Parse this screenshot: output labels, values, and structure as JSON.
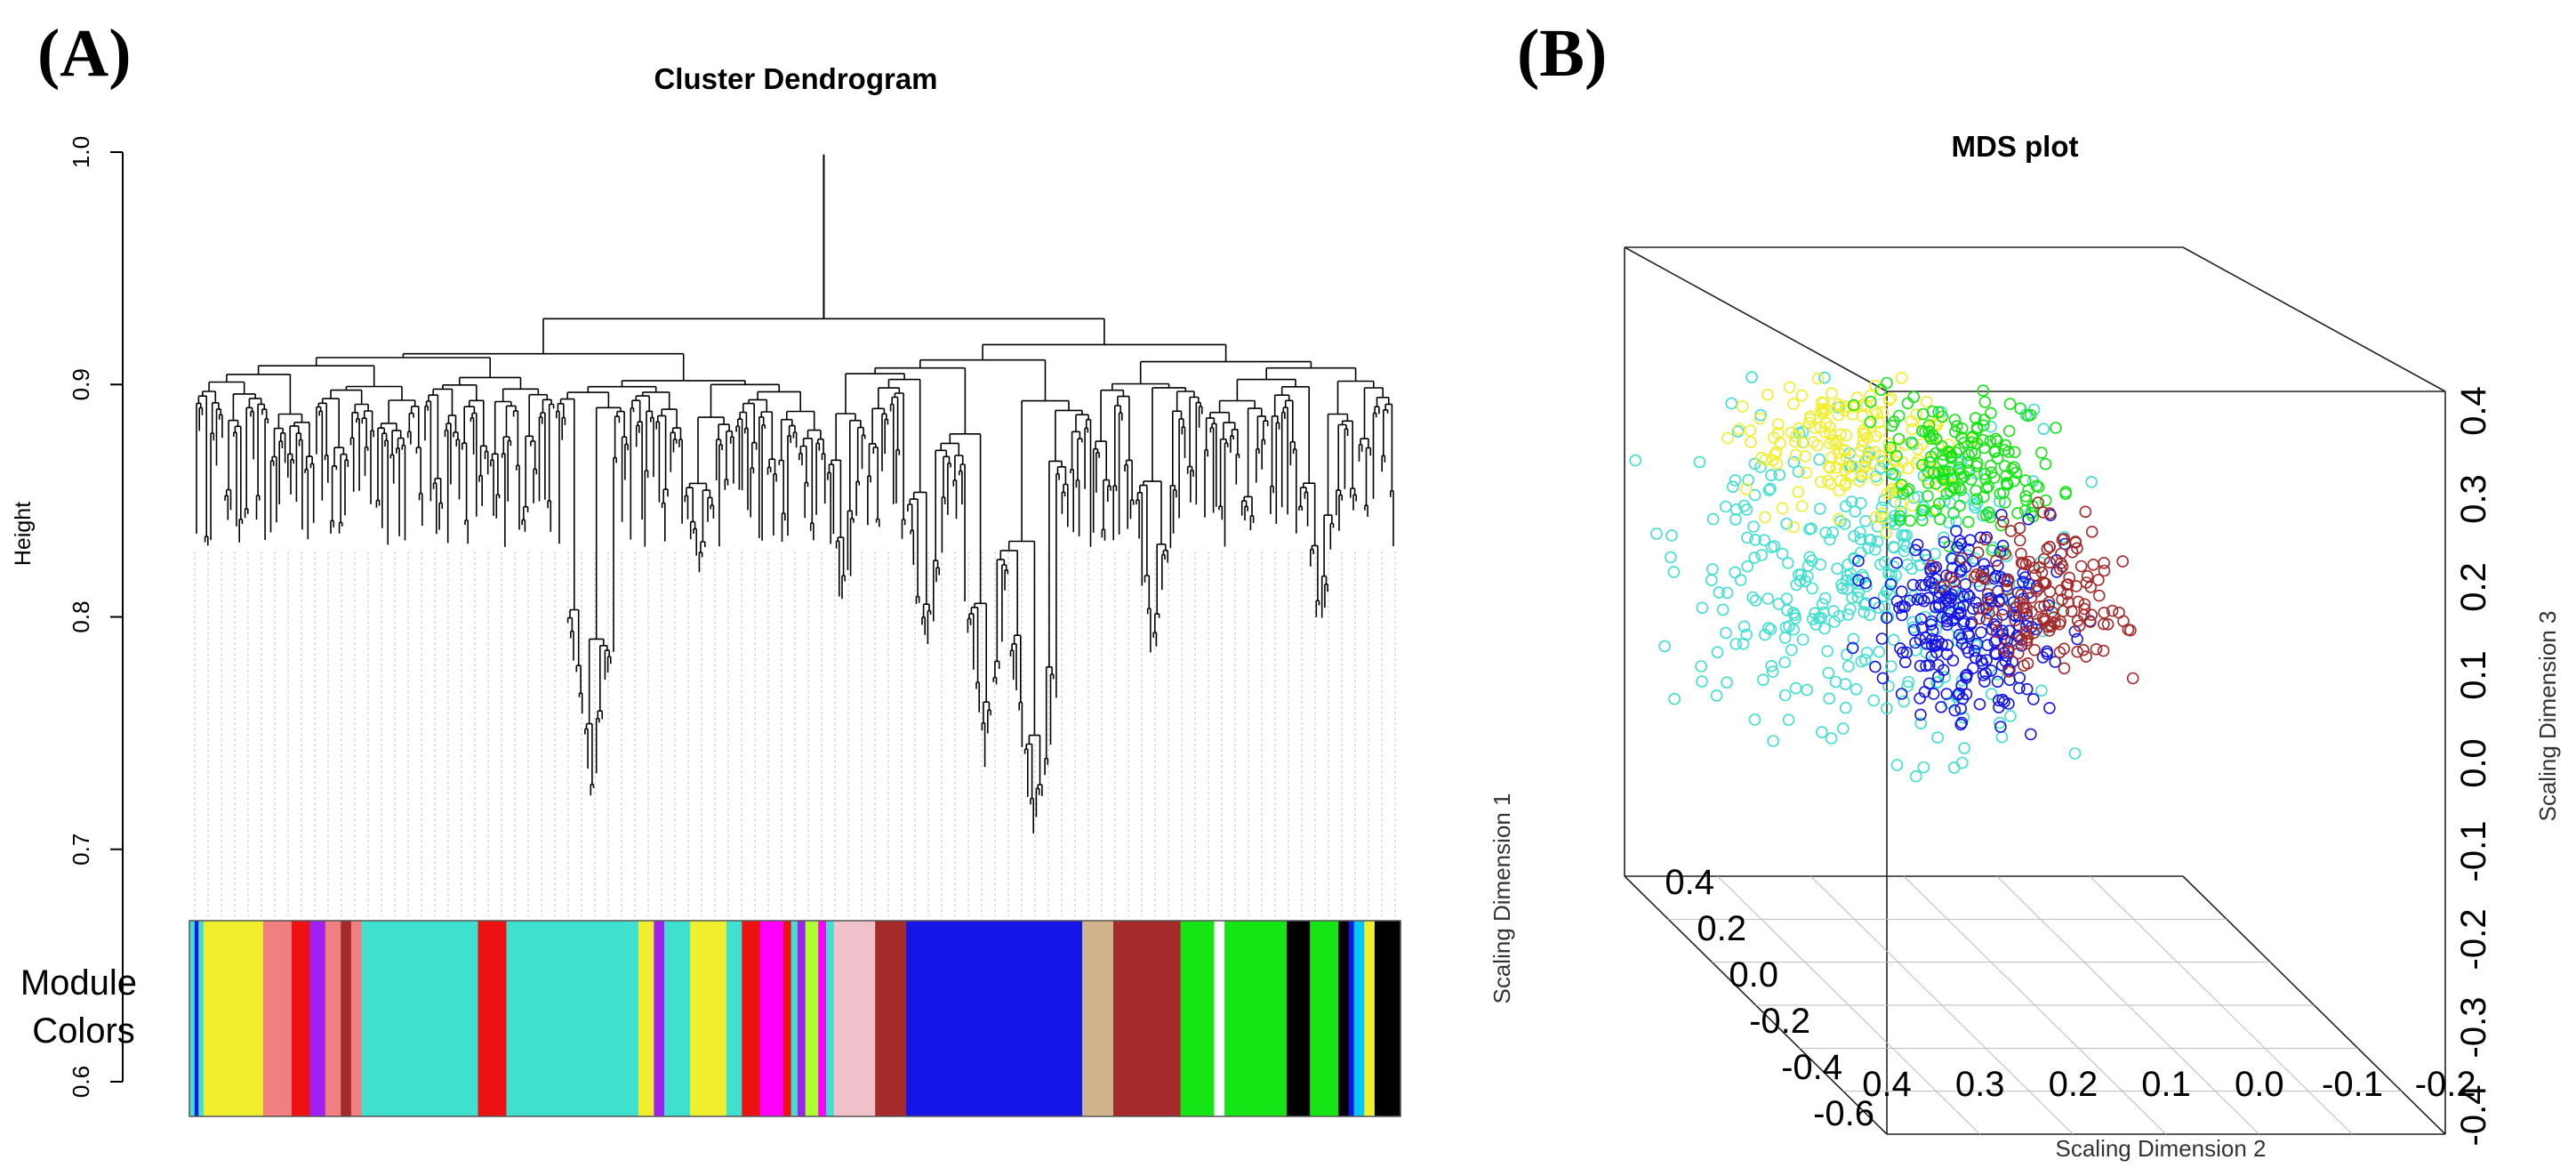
{
  "panel_a": {
    "label": "(A)"
  },
  "panel_b": {
    "label": "(B)"
  },
  "chart_data": [
    {
      "type": "dendrogram",
      "title": "Cluster Dendrogram",
      "ylabel": "Height",
      "ylim": [
        0.6,
        1.0
      ],
      "yticks": [
        "0.6",
        "0.7",
        "0.8",
        "0.9",
        "1.0"
      ],
      "module_label_lines": [
        "Module",
        "Colors"
      ],
      "branch_color": "#000000",
      "leaf_line_color": "#c9cedb",
      "module_colors": [
        {
          "color": "turquoise",
          "hex": "#40e0d0",
          "width": 0.4
        },
        {
          "color": "blue",
          "hex": "#1515e8",
          "width": 0.3
        },
        {
          "color": "turquoise",
          "hex": "#40e0d0",
          "width": 0.4
        },
        {
          "color": "yellow",
          "hex": "#f1ee2e",
          "width": 4.6
        },
        {
          "color": "salmon",
          "hex": "#f08080",
          "width": 2.2
        },
        {
          "color": "red",
          "hex": "#ee1111",
          "width": 1.4
        },
        {
          "color": "purple",
          "hex": "#a020f0",
          "width": 1.2
        },
        {
          "color": "salmon",
          "hex": "#f08080",
          "width": 1.2
        },
        {
          "color": "brown",
          "hex": "#a52a2a",
          "width": 0.8
        },
        {
          "color": "salmon",
          "hex": "#f08080",
          "width": 0.8
        },
        {
          "color": "turquoise",
          "hex": "#40e0d0",
          "width": 9.0
        },
        {
          "color": "red",
          "hex": "#ee1111",
          "width": 2.2
        },
        {
          "color": "turquoise",
          "hex": "#40e0d0",
          "width": 10.2
        },
        {
          "color": "yellow",
          "hex": "#f1ee2e",
          "width": 1.2
        },
        {
          "color": "purple",
          "hex": "#a020f0",
          "width": 0.8
        },
        {
          "color": "turquoise",
          "hex": "#40e0d0",
          "width": 2.0
        },
        {
          "color": "yellow",
          "hex": "#f1ee2e",
          "width": 2.8
        },
        {
          "color": "turquoise",
          "hex": "#40e0d0",
          "width": 1.2
        },
        {
          "color": "red",
          "hex": "#ee1111",
          "width": 1.4
        },
        {
          "color": "magenta",
          "hex": "#ff00ff",
          "width": 1.8
        },
        {
          "color": "red",
          "hex": "#ee1111",
          "width": 0.6
        },
        {
          "color": "turquoise",
          "hex": "#40e0d0",
          "width": 0.5
        },
        {
          "color": "purple",
          "hex": "#a020f0",
          "width": 0.6
        },
        {
          "color": "greenyellow",
          "hex": "#adff2f",
          "width": 1.0
        },
        {
          "color": "magenta",
          "hex": "#ff00ff",
          "width": 0.6
        },
        {
          "color": "turquoise",
          "hex": "#40e0d0",
          "width": 0.6
        },
        {
          "color": "pink",
          "hex": "#f0c0cb",
          "width": 3.2
        },
        {
          "color": "brown",
          "hex": "#a52a2a",
          "width": 2.4
        },
        {
          "color": "blue",
          "hex": "#1515e8",
          "width": 13.6
        },
        {
          "color": "tan",
          "hex": "#d2b48c",
          "width": 2.4
        },
        {
          "color": "brown",
          "hex": "#a52a2a",
          "width": 5.2
        },
        {
          "color": "green",
          "hex": "#15e515",
          "width": 2.6
        },
        {
          "color": "white",
          "hex": "#ffffff",
          "width": 0.8
        },
        {
          "color": "green",
          "hex": "#15e515",
          "width": 4.8
        },
        {
          "color": "black",
          "hex": "#000000",
          "width": 1.8
        },
        {
          "color": "green",
          "hex": "#15e515",
          "width": 2.2
        },
        {
          "color": "black",
          "hex": "#000000",
          "width": 0.8
        },
        {
          "color": "blue",
          "hex": "#1515e8",
          "width": 0.4
        },
        {
          "color": "cyan",
          "hex": "#00c8ff",
          "width": 0.8
        },
        {
          "color": "yellow",
          "hex": "#f1ee2e",
          "width": 0.8
        },
        {
          "color": "black",
          "hex": "#000000",
          "width": 2.0
        }
      ]
    },
    {
      "type": "scatter3d",
      "title": "MDS plot",
      "xlabel": "Scaling Dimension 2",
      "ylabel": "Scaling Dimension 1",
      "zlabel": "Scaling Dimension 3",
      "xlim": [
        0.4,
        -0.2
      ],
      "ylim": [
        -0.6,
        0.4
      ],
      "zlim": [
        -0.4,
        0.4
      ],
      "xticks": [
        "0.4",
        "0.3",
        "0.2",
        "0.1",
        "0.0",
        "-0.1",
        "-0.2"
      ],
      "yticks": [
        "0.4",
        "0.2",
        "0.0",
        "-0.2",
        "-0.4",
        "-0.6"
      ],
      "zticks": [
        "0.4",
        "0.3",
        "0.2",
        "0.1",
        "0.0",
        "-0.1",
        "-0.2",
        "-0.3",
        "-0.4"
      ],
      "marker": "open-circle",
      "groups": [
        {
          "color": "turquoise",
          "hex": "#40e0d0"
        },
        {
          "color": "yellow",
          "hex": "#f1ee2e"
        },
        {
          "color": "green",
          "hex": "#15e515"
        },
        {
          "color": "blue",
          "hex": "#1515e8"
        },
        {
          "color": "brown",
          "hex": "#a52a2a"
        }
      ]
    }
  ]
}
